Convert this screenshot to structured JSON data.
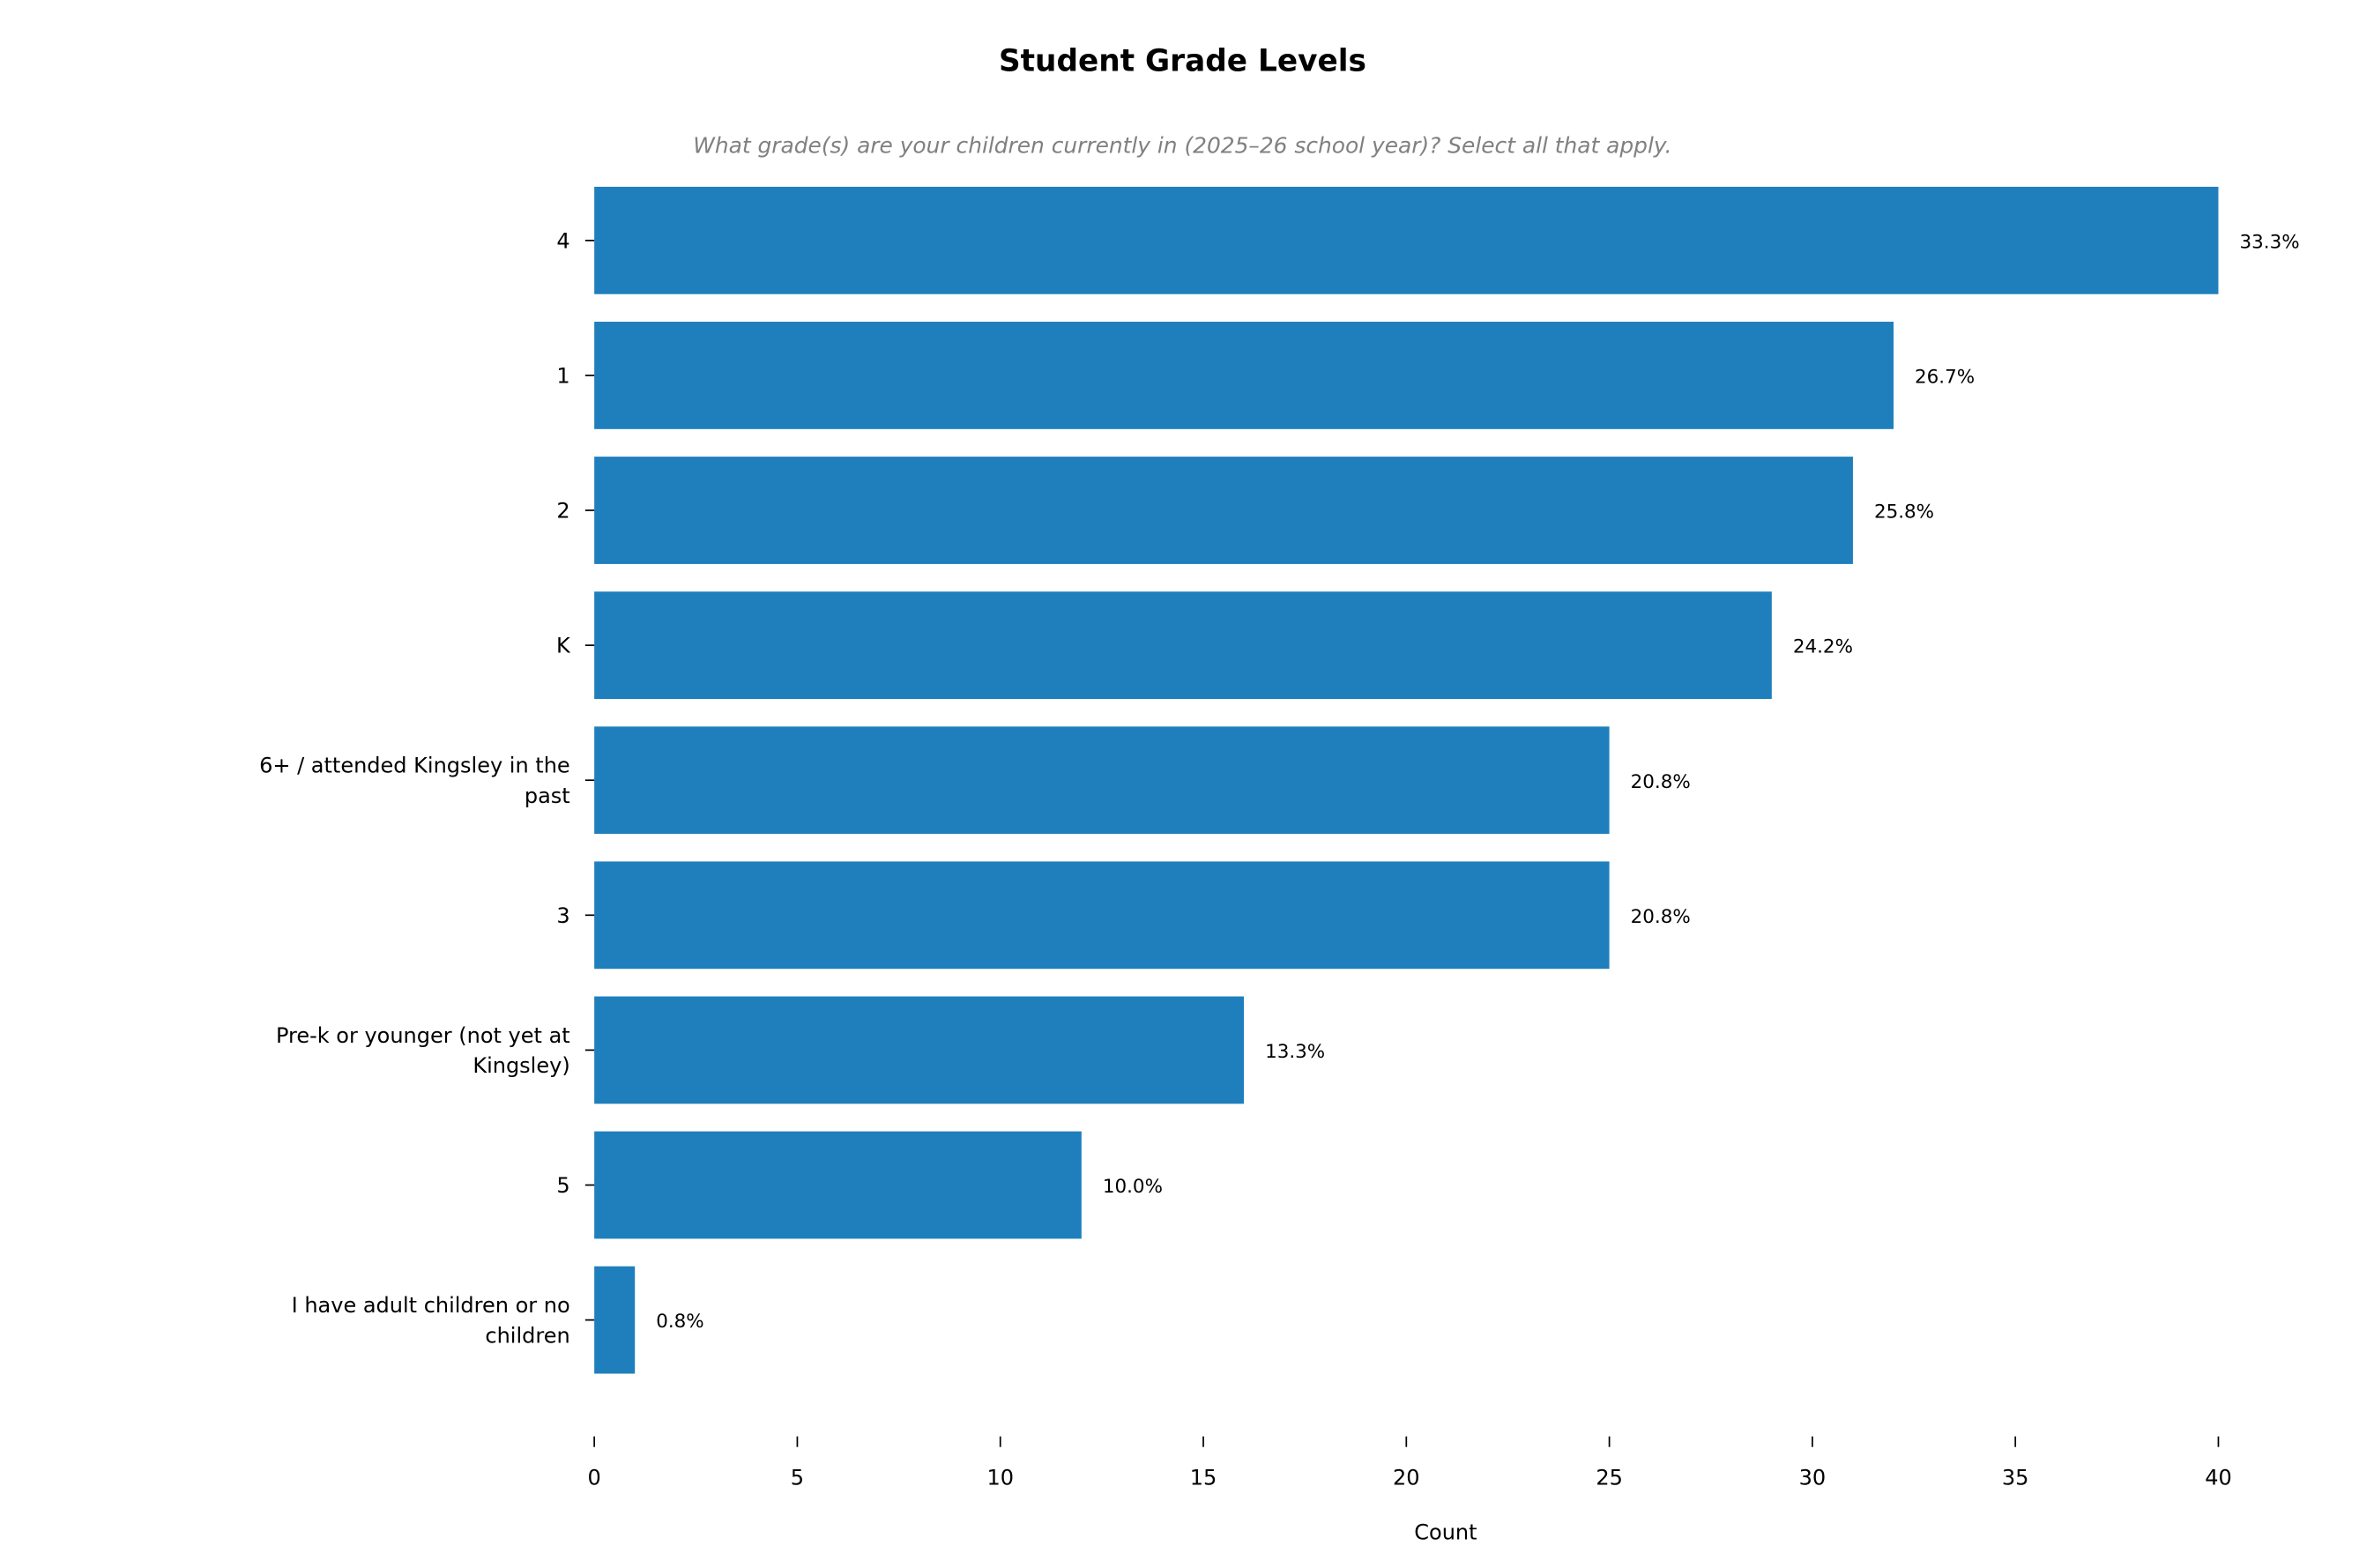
{
  "chart_data": {
    "type": "bar",
    "orientation": "horizontal",
    "title": "Student Grade Levels",
    "subtitle": "What grade(s) are your children currently in (2025–26 school year)? Select all that apply.",
    "xlabel": "Count",
    "ylabel": "",
    "xlim": [
      0,
      40
    ],
    "xticks": [
      "0",
      "5",
      "10",
      "15",
      "20",
      "25",
      "30",
      "35",
      "40"
    ],
    "grid": false,
    "color": "#1f7fbc",
    "categories": [
      [
        "4"
      ],
      [
        "1"
      ],
      [
        "2"
      ],
      [
        "K"
      ],
      [
        "6+ / attended Kingsley in the",
        "past"
      ],
      [
        "3"
      ],
      [
        "Pre-k or younger (not yet at",
        "Kingsley)"
      ],
      [
        "5"
      ],
      [
        "I have adult children or no",
        "children"
      ]
    ],
    "values": [
      40,
      32,
      31,
      29,
      25,
      25,
      16,
      12,
      1
    ],
    "data_labels": [
      "33.3%",
      "26.7%",
      "25.8%",
      "24.2%",
      "20.8%",
      "20.8%",
      "13.3%",
      "10.0%",
      "0.8%"
    ]
  }
}
